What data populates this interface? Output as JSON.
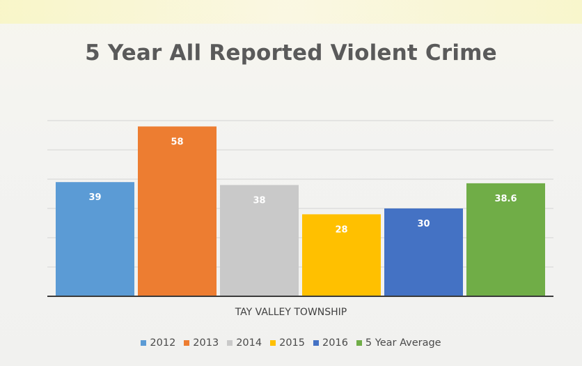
{
  "chart_data": {
    "type": "bar",
    "title": "5 Year All Reported Violent Crime",
    "categories": [
      "TAY VALLEY TOWNSHIP"
    ],
    "series": [
      {
        "name": "2012",
        "values": [
          39
        ],
        "label": "39",
        "color": "#5b9bd5"
      },
      {
        "name": "2013",
        "values": [
          58
        ],
        "label": "58",
        "color": "#ed7d31"
      },
      {
        "name": "2014",
        "values": [
          38
        ],
        "label": "38",
        "color": "#c9c9c9"
      },
      {
        "name": "2015",
        "values": [
          28
        ],
        "label": "28",
        "color": "#ffc000"
      },
      {
        "name": "2016",
        "values": [
          30
        ],
        "label": "30",
        "color": "#4472c4"
      },
      {
        "name": "5 Year Average",
        "values": [
          38.6
        ],
        "label": "38.6",
        "color": "#70ad47"
      }
    ],
    "ylim": [
      0,
      60
    ],
    "grid": true,
    "legend_position": "bottom"
  }
}
